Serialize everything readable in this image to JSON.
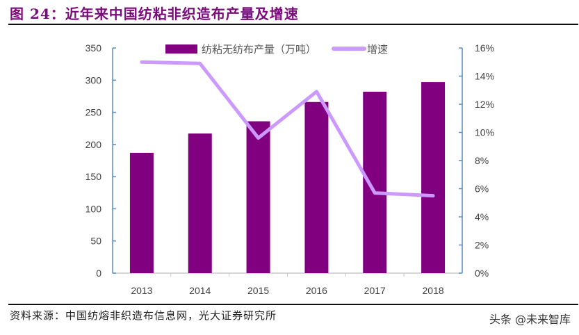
{
  "title": "图 24：近年来中国纺粘非织造布产量及增速",
  "source": "资料来源：中国纺熔非织造布信息网，光大证券研究所",
  "watermark": "头条 @未来智库",
  "colors": {
    "bar": "#800080",
    "line": "#cc99ff",
    "axis": "#5b8ac0",
    "title": "#7b0a7b"
  },
  "chart_data": {
    "type": "bar+line",
    "categories": [
      "2013",
      "2014",
      "2015",
      "2016",
      "2017",
      "2018"
    ],
    "series": [
      {
        "name": "纺粘无纺布产量（万吨）",
        "type": "bar",
        "axis": "left",
        "values": [
          187,
          217,
          236,
          266,
          282,
          297
        ]
      },
      {
        "name": "增速",
        "type": "line",
        "axis": "right",
        "values": [
          15.0,
          14.9,
          9.6,
          12.9,
          5.7,
          5.5
        ]
      }
    ],
    "left_axis": {
      "ylim": [
        0,
        350
      ],
      "ticks": [
        "0",
        "50",
        "100",
        "150",
        "200",
        "250",
        "300",
        "350"
      ]
    },
    "right_axis": {
      "ylim": [
        0,
        16
      ],
      "ticks": [
        "0%",
        "2%",
        "4%",
        "6%",
        "8%",
        "10%",
        "12%",
        "14%",
        "16%"
      ]
    },
    "legend": "top",
    "grid": false
  }
}
